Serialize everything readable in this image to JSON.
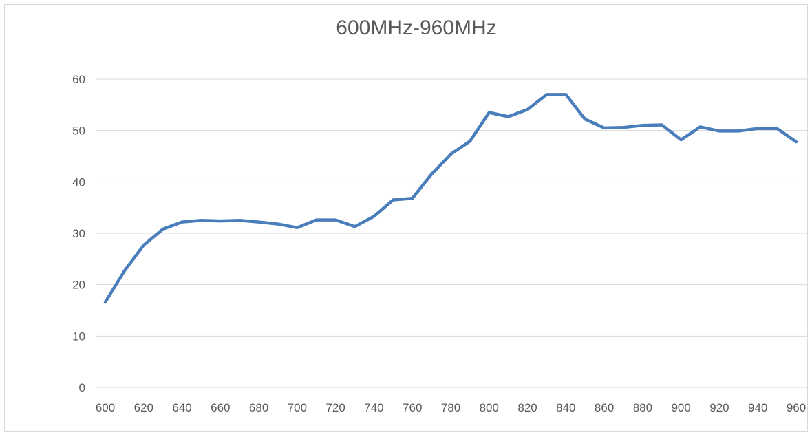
{
  "chart_data": {
    "type": "line",
    "title": "600MHz-960MHz",
    "xlabel": "",
    "ylabel": "",
    "xlim": [
      600,
      960
    ],
    "ylim": [
      0,
      60
    ],
    "xticks": [
      600,
      620,
      640,
      660,
      680,
      700,
      720,
      740,
      760,
      780,
      800,
      820,
      840,
      860,
      880,
      900,
      920,
      940,
      960
    ],
    "yticks": [
      0,
      10,
      20,
      30,
      40,
      50,
      60
    ],
    "grid": true,
    "legend": "none",
    "series": [
      {
        "color": "#4a7ebb",
        "x": [
          600,
          610,
          620,
          630,
          640,
          650,
          660,
          670,
          680,
          690,
          700,
          710,
          720,
          730,
          740,
          750,
          760,
          770,
          780,
          790,
          800,
          810,
          820,
          830,
          840,
          850,
          860,
          870,
          880,
          890,
          900,
          910,
          920,
          930,
          940,
          950,
          960
        ],
        "y": [
          16.6,
          22.7,
          27.7,
          30.8,
          32.2,
          32.5,
          32.4,
          32.5,
          32.2,
          31.8,
          31.1,
          32.6,
          32.6,
          31.3,
          33.3,
          36.5,
          36.8,
          41.5,
          45.4,
          47.9,
          53.5,
          52.7,
          54.1,
          57.0,
          57.0,
          52.2,
          50.5,
          50.6,
          51.0,
          51.1,
          48.2,
          50.7,
          49.9,
          49.9,
          50.4,
          50.4,
          47.8
        ]
      }
    ]
  }
}
